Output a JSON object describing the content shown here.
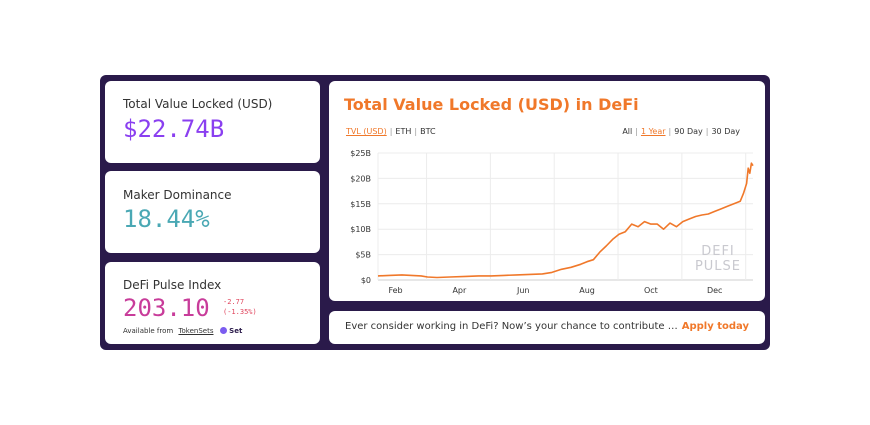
{
  "stats": {
    "tvl": {
      "label": "Total Value Locked (USD)",
      "value": "$22.74B",
      "color": "#8a3ff0"
    },
    "maker": {
      "label": "Maker Dominance",
      "value": "18.44%",
      "color": "#4aa8b4"
    },
    "index": {
      "label": "DeFi Pulse Index",
      "value": "203.10",
      "color": "#c83c9a",
      "change": "-2.77",
      "change_pct": "(-1.35%)",
      "change_color": "#e0445c",
      "available_prefix": "Available from",
      "available_link": "TokenSets",
      "set_label": "Set"
    }
  },
  "chart": {
    "title": "Total Value Locked (USD) in DeFi",
    "series_tabs": [
      "TVL (USD)",
      "ETH",
      "BTC"
    ],
    "active_series": "TVL (USD)",
    "range_tabs": [
      "All",
      "1 Year",
      "90 Day",
      "30 Day"
    ],
    "active_range": "1 Year",
    "watermark_line1": "DEFI",
    "watermark_line2": "PULSE",
    "line_color": "#f0782a"
  },
  "chart_data": {
    "type": "line",
    "title": "Total Value Locked (USD) in DeFi",
    "xlabel": "",
    "ylabel": "",
    "y_ticks": [
      "$0",
      "$5B",
      "$10B",
      "$15B",
      "$20B",
      "$25B"
    ],
    "x_ticks": [
      "Feb",
      "Apr",
      "Jun",
      "Aug",
      "Oct",
      "Dec"
    ],
    "x_tick_pos": [
      1.0,
      3.0,
      5.0,
      7.0,
      9.0,
      11.0
    ],
    "ylim": [
      0,
      25
    ],
    "xlim": [
      0.45,
      12.2
    ],
    "grid": true,
    "series": [
      {
        "x": [
          0.45,
          0.8,
          1.2,
          1.5,
          1.8,
          2.0,
          2.3,
          2.7,
          3.2,
          3.6,
          4.0,
          4.4,
          4.8,
          5.2,
          5.6,
          5.9,
          6.2,
          6.5,
          6.8,
          7.0,
          7.2,
          7.4,
          7.6,
          7.8,
          8.0,
          8.2,
          8.4,
          8.6,
          8.8,
          9.0,
          9.2,
          9.4,
          9.6,
          9.8,
          10.0,
          10.2,
          10.4,
          10.6,
          10.8,
          11.0,
          11.2,
          11.4,
          11.6,
          11.8,
          11.9,
          12.0,
          12.05,
          12.1,
          12.15,
          12.2
        ],
        "y": [
          0.8,
          0.9,
          1.0,
          0.9,
          0.8,
          0.6,
          0.5,
          0.6,
          0.7,
          0.8,
          0.8,
          0.9,
          1.0,
          1.1,
          1.2,
          1.5,
          2.1,
          2.5,
          3.1,
          3.6,
          4.0,
          5.5,
          6.7,
          8.0,
          9.0,
          9.5,
          11.0,
          10.5,
          11.5,
          11.0,
          11.0,
          10.0,
          11.2,
          10.5,
          11.5,
          12.0,
          12.5,
          12.8,
          13.0,
          13.5,
          14.0,
          14.5,
          15.0,
          15.5,
          17.0,
          19.0,
          22.0,
          21.0,
          23.0,
          22.5
        ]
      }
    ]
  },
  "banner": {
    "text": "Ever consider working in DeFi? Now’s your chance to contribute …",
    "link": "Apply today"
  }
}
